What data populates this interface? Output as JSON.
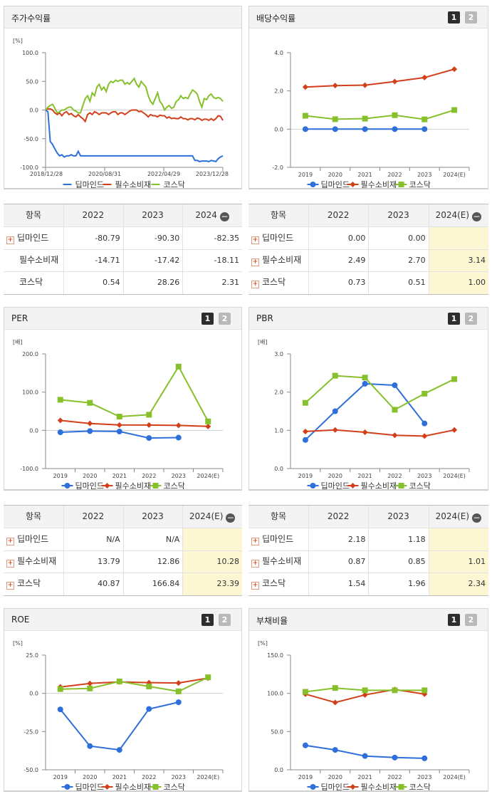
{
  "charts": [
    {
      "title": "주가수익률",
      "type": "line",
      "buttons": false,
      "unit": "[%]",
      "ylim": [
        -100,
        100
      ],
      "yticks": [
        "100.0",
        "50.0",
        "0.0",
        "-50.0",
        "-100.0"
      ],
      "xtick_labels": [
        "2018/12/28",
        "2020/08/31",
        "2022/04/29",
        "2023/12/28"
      ],
      "legend": [
        "딥마인드",
        "필수소비재",
        "코스닥"
      ],
      "colors": [
        "#2e6fdb",
        "#d2401b",
        "#86c02b"
      ],
      "series_values": [
        [
          0,
          -3,
          -55,
          -60,
          -68,
          -75,
          -80,
          -78,
          -82,
          -80,
          -80,
          -78,
          -80,
          -80,
          -72,
          -80,
          -80,
          -80,
          -80,
          -80,
          -80,
          -80,
          -80,
          -80,
          -80,
          -80,
          -80,
          -80,
          -80,
          -80,
          -80,
          -80,
          -80,
          -80,
          -80,
          -80,
          -80,
          -80,
          -80,
          -80,
          -80,
          -80,
          -80,
          -80,
          -80,
          -80,
          -80,
          -80,
          -80,
          -80,
          -80,
          -80,
          -80,
          -80,
          -80,
          -80,
          -80,
          -80,
          -80,
          -80,
          -80,
          -80,
          -80,
          -80,
          -88,
          -88,
          -90,
          -89,
          -89,
          -89,
          -90,
          -88,
          -89,
          -90,
          -85,
          -82,
          -80
        ],
        [
          0,
          2,
          2,
          0,
          -5,
          -8,
          -5,
          -10,
          -5,
          -3,
          -8,
          -6,
          -10,
          -12,
          -8,
          -12,
          -15,
          -20,
          -8,
          -5,
          -8,
          -3,
          -5,
          -8,
          -5,
          -5,
          -5,
          -8,
          -5,
          -3,
          -3,
          -8,
          -5,
          -5,
          -8,
          -5,
          -2,
          0,
          0,
          0,
          -3,
          -2,
          -5,
          -8,
          -12,
          -8,
          -10,
          -10,
          -12,
          -9,
          -10,
          -10,
          -14,
          -12,
          -15,
          -14,
          -15,
          -15,
          -12,
          -15,
          -15,
          -17,
          -15,
          -15,
          -17,
          -14,
          -15,
          -18,
          -16,
          -16,
          -18,
          -15,
          -18,
          -15,
          -10,
          -11,
          -18
        ],
        [
          0,
          5,
          8,
          10,
          3,
          -5,
          -3,
          0,
          0,
          3,
          5,
          5,
          0,
          -2,
          -5,
          -5,
          8,
          20,
          25,
          15,
          30,
          25,
          40,
          45,
          35,
          40,
          32,
          45,
          50,
          48,
          52,
          50,
          52,
          52,
          45,
          48,
          45,
          50,
          55,
          45,
          40,
          50,
          45,
          40,
          25,
          15,
          10,
          20,
          30,
          15,
          10,
          0,
          5,
          8,
          3,
          5,
          15,
          18,
          25,
          20,
          22,
          20,
          28,
          35,
          32,
          28,
          15,
          5,
          20,
          18,
          25,
          28,
          22,
          20,
          22,
          20,
          15
        ]
      ]
    },
    {
      "title": "배당수익률",
      "type": "line",
      "buttons": true,
      "unit": "",
      "ylim": [
        -2,
        4
      ],
      "yticks": [
        "4.0",
        "2.0",
        "0.0",
        "-2.0"
      ],
      "categories": [
        "2019",
        "2020",
        "2021",
        "2022",
        "2023",
        "2024(E)"
      ],
      "legend": [
        "딥마인드",
        "필수소비재",
        "코스닥"
      ],
      "colors": [
        "#2e6fdb",
        "#d2401b",
        "#86c02b"
      ],
      "series": [
        {
          "name": "딥마인드",
          "values": [
            0.0,
            0.0,
            0.0,
            0.0,
            0.0,
            null
          ]
        },
        {
          "name": "필수소비재",
          "values": [
            2.2,
            2.28,
            2.3,
            2.49,
            2.7,
            3.14
          ]
        },
        {
          "name": "코스닥",
          "values": [
            0.7,
            0.52,
            0.55,
            0.73,
            0.51,
            1.0
          ]
        }
      ]
    },
    {
      "title": "PER",
      "type": "line",
      "buttons": true,
      "unit": "[배]",
      "ylim": [
        -100,
        200
      ],
      "yticks": [
        "200.0",
        "100.0",
        "0.0",
        "-100.0"
      ],
      "categories": [
        "2019",
        "2020",
        "2021",
        "2022",
        "2023",
        "2024(E)"
      ],
      "legend": [
        "딥마인드",
        "필수소비재",
        "코스닥"
      ],
      "colors": [
        "#2e6fdb",
        "#d2401b",
        "#86c02b"
      ],
      "series": [
        {
          "name": "딥마인드",
          "values": [
            -5,
            -2,
            -3,
            -20,
            -19,
            null
          ]
        },
        {
          "name": "필수소비재",
          "values": [
            26,
            18,
            14,
            13.79,
            12.86,
            10.28
          ]
        },
        {
          "name": "코스닥",
          "values": [
            80,
            72,
            36,
            40.87,
            166.84,
            23.39
          ]
        }
      ]
    },
    {
      "title": "PBR",
      "type": "line",
      "buttons": true,
      "unit": "[배]",
      "ylim": [
        0,
        3
      ],
      "yticks": [
        "3.0",
        "2.0",
        "1.0",
        "0.0"
      ],
      "categories": [
        "2019",
        "2020",
        "2021",
        "2022",
        "2023",
        "2024(E)"
      ],
      "legend": [
        "딥마인드",
        "필수소비재",
        "코스닥"
      ],
      "colors": [
        "#2e6fdb",
        "#d2401b",
        "#86c02b"
      ],
      "series": [
        {
          "name": "딥마인드",
          "values": [
            0.75,
            1.5,
            2.22,
            2.18,
            1.18,
            null
          ]
        },
        {
          "name": "필수소비재",
          "values": [
            0.97,
            1.01,
            0.95,
            0.87,
            0.85,
            1.01
          ]
        },
        {
          "name": "코스닥",
          "values": [
            1.72,
            2.43,
            2.38,
            1.54,
            1.96,
            2.34
          ]
        }
      ]
    },
    {
      "title": "ROE",
      "type": "line",
      "buttons": true,
      "unit": "[%]",
      "ylim": [
        -50,
        25
      ],
      "yticks": [
        "25.0",
        "0.0",
        "-25.0",
        "-50.0"
      ],
      "categories": [
        "2019",
        "2020",
        "2021",
        "2022",
        "2023",
        "2024(E)"
      ],
      "legend": [
        "딥마인드",
        "필수소비재",
        "코스닥"
      ],
      "colors": [
        "#2e6fdb",
        "#d2401b",
        "#86c02b"
      ],
      "series": [
        {
          "name": "딥마인드",
          "values": [
            -10.5,
            -34.5,
            -37,
            -10.2,
            -5.8,
            null
          ]
        },
        {
          "name": "필수소비재",
          "values": [
            4.2,
            6.5,
            7.5,
            7.0,
            6.8,
            10.0
          ]
        },
        {
          "name": "코스닥",
          "values": [
            2.8,
            3.2,
            7.8,
            4.5,
            1.3,
            10.5
          ]
        }
      ]
    },
    {
      "title": "부채비율",
      "type": "line",
      "buttons": true,
      "unit": "[%]",
      "ylim": [
        0,
        150
      ],
      "yticks": [
        "150.0",
        "100.0",
        "50.0",
        "0.0"
      ],
      "categories": [
        "2019",
        "2020",
        "2021",
        "2022",
        "2023",
        "2024(E)"
      ],
      "legend": [
        "딥마인드",
        "필수소비재",
        "코스닥"
      ],
      "colors": [
        "#2e6fdb",
        "#d2401b",
        "#86c02b"
      ],
      "series": [
        {
          "name": "딥마인드",
          "values": [
            32,
            26,
            18,
            16,
            15,
            null
          ]
        },
        {
          "name": "필수소비재",
          "values": [
            99,
            88,
            98,
            105,
            99,
            null
          ]
        },
        {
          "name": "코스닥",
          "values": [
            102,
            107,
            104,
            104,
            104,
            null
          ]
        }
      ]
    }
  ],
  "tables": [
    {
      "header_label": "항목",
      "columns": [
        "2022",
        "2023",
        "2024"
      ],
      "estimate_col": false,
      "rows": [
        {
          "label": "딥마인드",
          "plus": true,
          "values": [
            "-80.79",
            "-90.30",
            "-82.35"
          ]
        },
        {
          "label": "필수소비재",
          "plus": false,
          "values": [
            "-14.71",
            "-17.42",
            "-18.11"
          ]
        },
        {
          "label": "코스닥",
          "plus": false,
          "values": [
            "0.54",
            "28.26",
            "2.31"
          ]
        }
      ]
    },
    {
      "header_label": "항목",
      "columns": [
        "2022",
        "2023",
        "2024(E)"
      ],
      "estimate_col": true,
      "rows": [
        {
          "label": "딥마인드",
          "plus": true,
          "values": [
            "0.00",
            "0.00",
            ""
          ]
        },
        {
          "label": "필수소비재",
          "plus": true,
          "values": [
            "2.49",
            "2.70",
            "3.14"
          ]
        },
        {
          "label": "코스닥",
          "plus": true,
          "values": [
            "0.73",
            "0.51",
            "1.00"
          ]
        }
      ]
    },
    {
      "header_label": "항목",
      "columns": [
        "2022",
        "2023",
        "2024(E)"
      ],
      "estimate_col": true,
      "rows": [
        {
          "label": "딥마인드",
          "plus": true,
          "values": [
            "N/A",
            "N/A",
            ""
          ]
        },
        {
          "label": "필수소비재",
          "plus": true,
          "values": [
            "13.79",
            "12.86",
            "10.28"
          ]
        },
        {
          "label": "코스닥",
          "plus": true,
          "values": [
            "40.87",
            "166.84",
            "23.39"
          ]
        }
      ]
    },
    {
      "header_label": "항목",
      "columns": [
        "2022",
        "2023",
        "2024(E)"
      ],
      "estimate_col": true,
      "rows": [
        {
          "label": "딥마인드",
          "plus": true,
          "values": [
            "2.18",
            "1.18",
            ""
          ]
        },
        {
          "label": "필수소비재",
          "plus": true,
          "values": [
            "0.87",
            "0.85",
            "1.01"
          ]
        },
        {
          "label": "코스닥",
          "plus": true,
          "values": [
            "1.54",
            "1.96",
            "2.34"
          ]
        }
      ]
    }
  ],
  "ui": {
    "btn1": "1",
    "btn2": "2",
    "plus": "+",
    "minus": "−"
  }
}
